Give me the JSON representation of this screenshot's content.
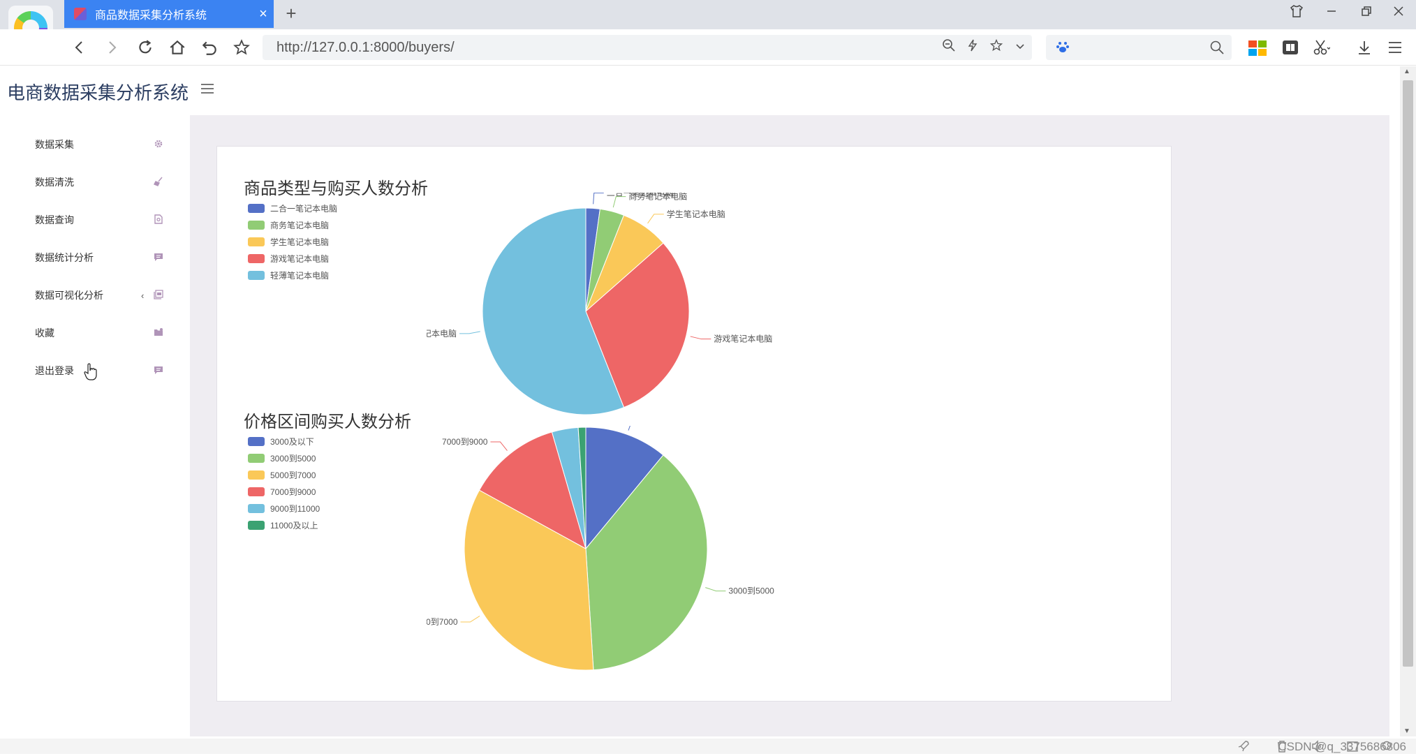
{
  "browser": {
    "tab_title": "商品数据采集分析系统",
    "tab_close": "×",
    "new_tab": "+",
    "url": "http://127.0.0.1:8000/buyers/",
    "window_controls": [
      "shirt-icon",
      "minimize-icon",
      "restore-icon",
      "close-icon"
    ]
  },
  "app": {
    "title": "电商数据采集分析系统",
    "sidebar": {
      "items": [
        {
          "label": "数据采集",
          "icon": "gear-icon"
        },
        {
          "label": "数据清洗",
          "icon": "broom-icon"
        },
        {
          "label": "数据查询",
          "icon": "search-doc-icon"
        },
        {
          "label": "数据统计分析",
          "icon": "chat-icon"
        },
        {
          "label": "数据可视化分析",
          "icon": "layers-icon",
          "arrow": "‹"
        },
        {
          "label": "收藏",
          "icon": "folder-icon"
        },
        {
          "label": "退出登录",
          "icon": "logout-icon"
        }
      ]
    }
  },
  "watermark": "CSDN @q_3375686806",
  "chart_data": [
    {
      "type": "pie",
      "title": "商品类型与购买人数分析",
      "categories": [
        "二合一笔记本电脑",
        "商务笔记本电脑",
        "学生笔记本电脑",
        "游戏笔记本电脑",
        "轻薄笔记本电脑"
      ],
      "values": [
        2.2,
        3.8,
        7.5,
        30.5,
        56
      ],
      "colors": [
        "#5470c6",
        "#91cc75",
        "#fac858",
        "#ee6666",
        "#73c0de"
      ],
      "legend": "top-left"
    },
    {
      "type": "pie",
      "title": "价格区间购买人数分析",
      "categories": [
        "3000及以下",
        "3000到5000",
        "5000到7000",
        "7000到9000",
        "9000到11000",
        "11000及以上"
      ],
      "values": [
        11,
        38,
        34,
        12.5,
        3.5,
        1
      ],
      "colors": [
        "#5470c6",
        "#91cc75",
        "#fac858",
        "#ee6666",
        "#73c0de",
        "#3ba272"
      ],
      "legend": "top-left"
    }
  ]
}
